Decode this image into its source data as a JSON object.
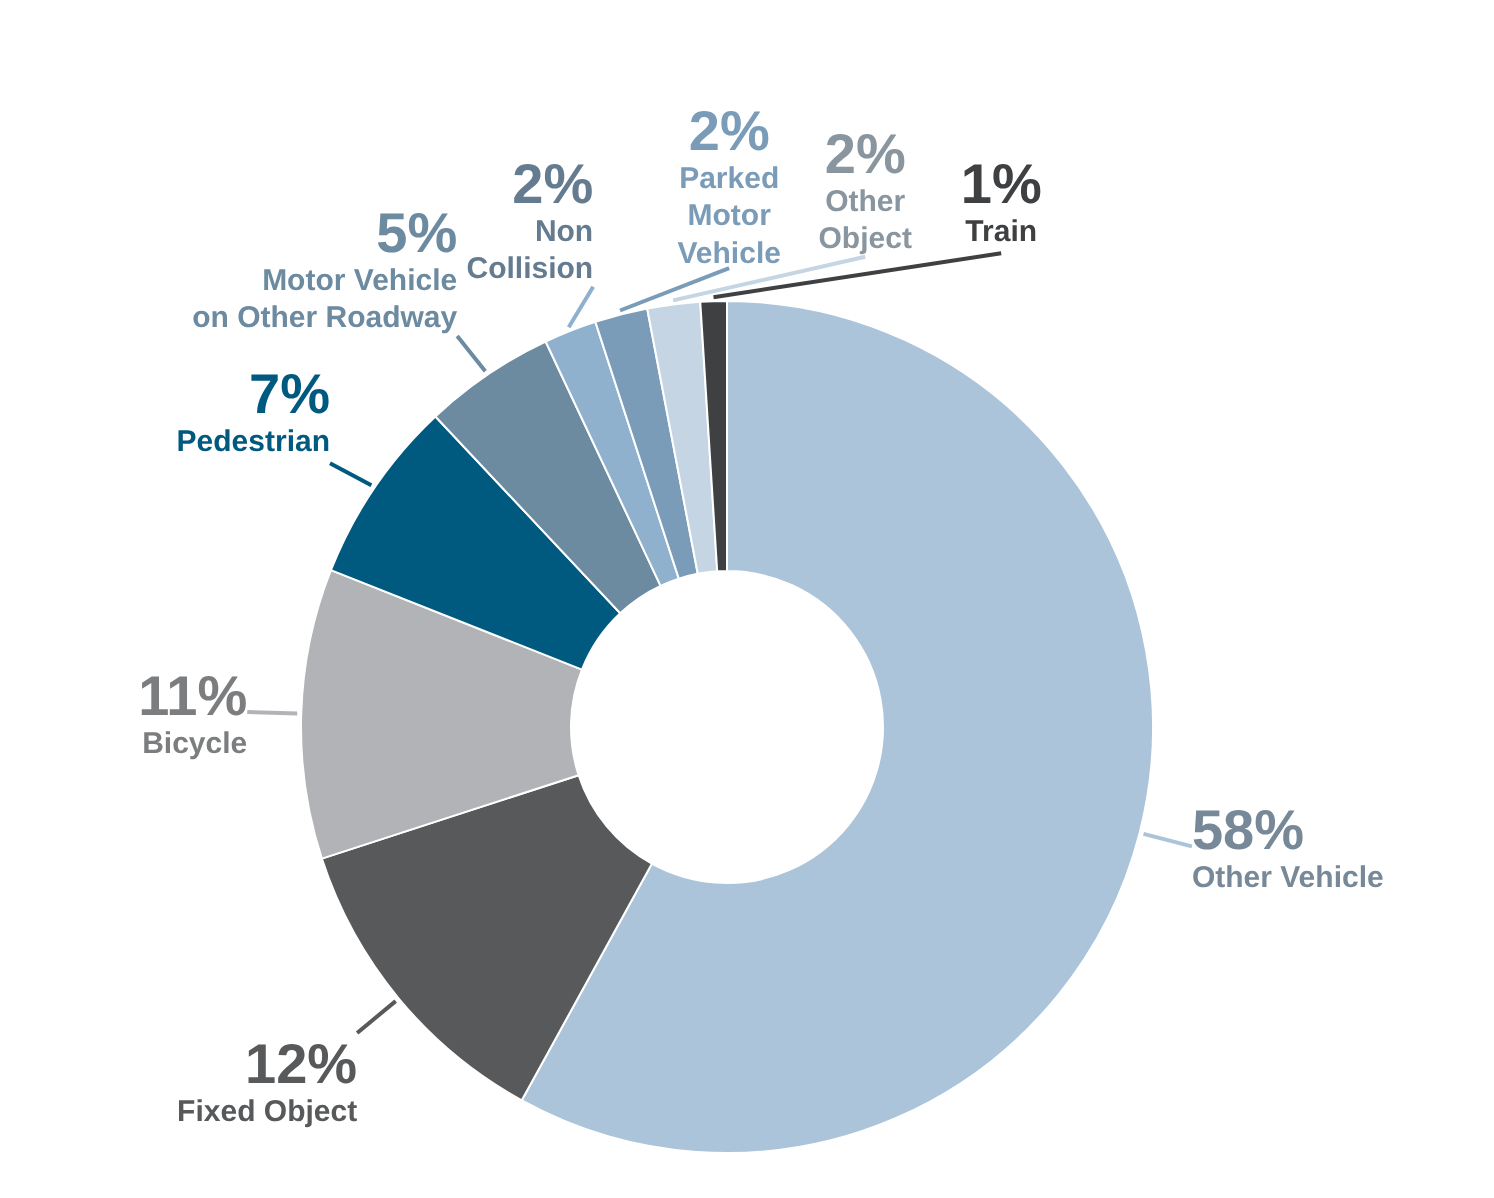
{
  "chart_data": {
    "type": "donut",
    "categories": [
      "Other Vehicle",
      "Fixed Object",
      "Bicycle",
      "Pedestrian",
      "Motor Vehicle\non Other Roadway",
      "Non\nCollision",
      "Parked\nMotor\nVehicle",
      "Other\nObject",
      "Train"
    ],
    "values": [
      58,
      12,
      11,
      7,
      5,
      2,
      2,
      2,
      1
    ],
    "value_labels": [
      "58%",
      "12%",
      "11%",
      "7%",
      "5%",
      "2%",
      "2%",
      "2%",
      "1%"
    ],
    "colors": [
      "#abc4da",
      "#58595b",
      "#b1b3b6",
      "#005a80",
      "#6c8aa0",
      "#8fb1ce",
      "#7a9cb8",
      "#c5d5e4",
      "#3f4042"
    ]
  }
}
